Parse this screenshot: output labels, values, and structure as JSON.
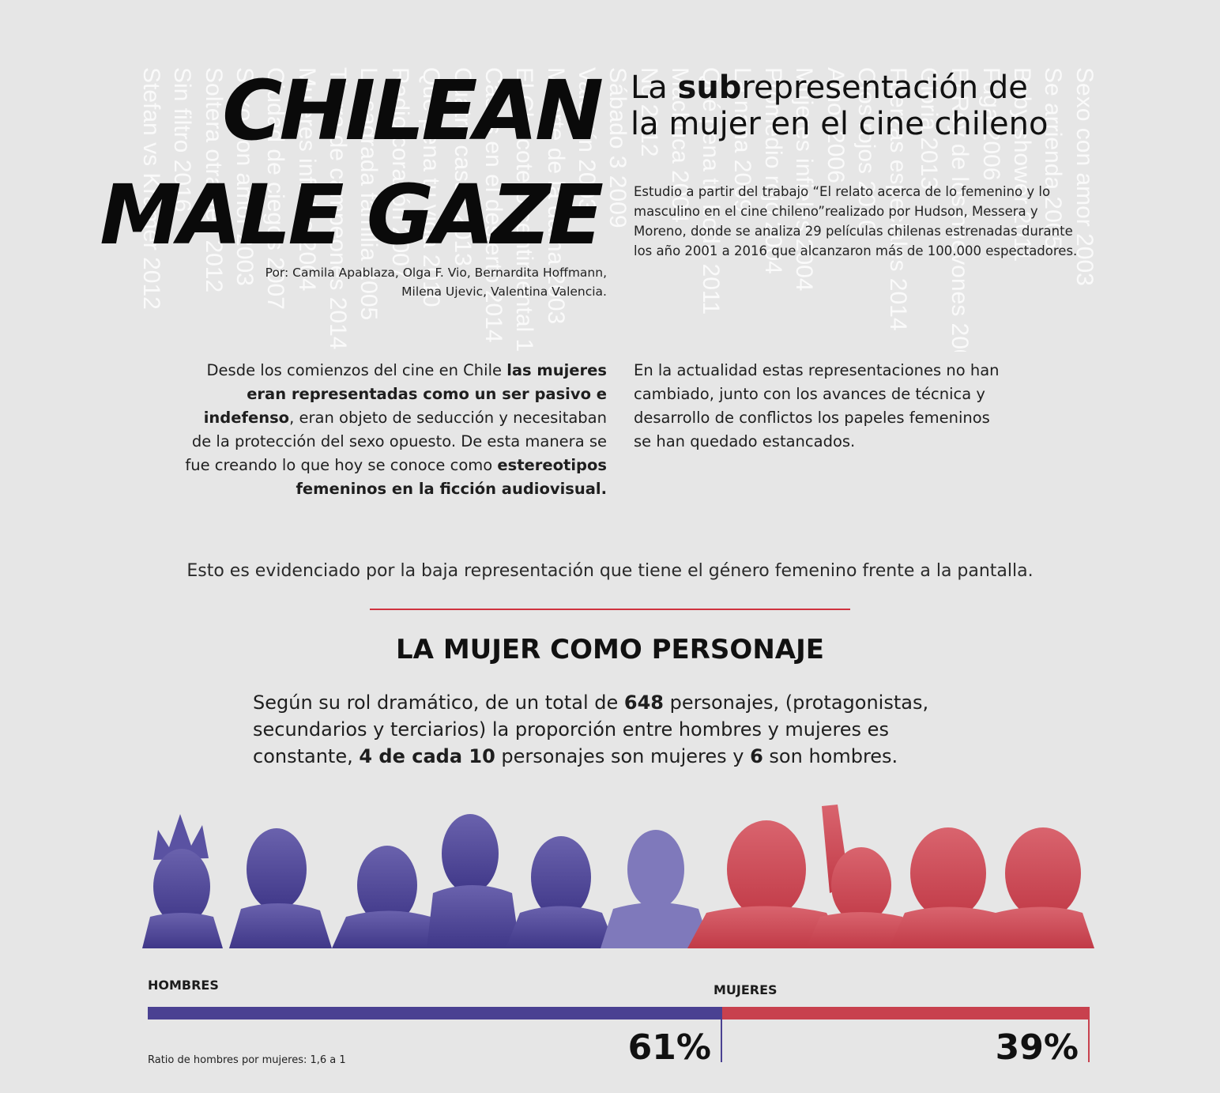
{
  "background_titles": [
    {
      "text": "Stefan vs Kramer 2012"
    },
    {
      "text": "Sin filtro 2016"
    },
    {
      "text": "Soltera otra vez 2012"
    },
    {
      "text": "Sexo con amor 2003"
    },
    {
      "text": "Ciudad de ciegos 2007"
    },
    {
      "text": "Mujeres infieles 2004"
    },
    {
      "text": "Tierra de campeones 2014"
    },
    {
      "text": "La sagrada familia 2005"
    },
    {
      "text": "Radio corazón 2007"
    },
    {
      "text": "Qué pena tu vida 2010"
    },
    {
      "text": "Cuatro casas 2013"
    },
    {
      "text": "Casas en el desierto 2014"
    },
    {
      "text": "El Chacotero sentimental 1999"
    },
    {
      "text": "Muerte de la dama 2003"
    },
    {
      "text": "Valentín 2003"
    },
    {
      "text": "Sábado 3 2009"
    },
    {
      "text": "No 2012"
    },
    {
      "text": "Machuca 2004"
    },
    {
      "text": "Qué pena tu boda 2011"
    },
    {
      "text": "La nana 2009"
    },
    {
      "text": "Promedio rojo 2004"
    },
    {
      "text": "Mujeres infieles 2004"
    },
    {
      "text": "Amor 2006"
    },
    {
      "text": "Ojos rojos 2010"
    },
    {
      "text": "Fuerzas especiales 2014"
    },
    {
      "text": "Gloria 2013"
    },
    {
      "text": "El Rey de los huevones 2006"
    },
    {
      "text": "Fuga 2006"
    },
    {
      "text": "Baby shower 2011"
    },
    {
      "text": "Se arrienda 2005"
    },
    {
      "text": "Sexo con amor 2003"
    }
  ],
  "header": {
    "title_line1": "CHILEAN",
    "title_line2": "MALE GAZE",
    "subtitle_prefix": "La ",
    "subtitle_bold": "sub",
    "subtitle_rest": "representación de",
    "subtitle_line2": "la mujer en el cine chileno",
    "authors_line1": "Por: Camila Apablaza, Olga F. Vio, Bernardita Hoffmann,",
    "authors_line2": "Milena Ujevic, Valentina Valencia.",
    "intro_lines": [
      "Estudio a partir del trabajo “El relato acerca de lo femenino y lo",
      "masculino en el cine chileno”realizado por Hudson, Messera y",
      "Moreno, donde se analiza 29 películas chilenas estrenadas durante",
      "los año 2001 a 2016 que alcanzaron más de 100.000 espectadores."
    ]
  },
  "left_paragraph": {
    "l1a": "Desde los comienzos del cine en Chile ",
    "l1b": "las mujeres",
    "l2": "eran representadas como un ser pasivo e",
    "l3a": "indefenso",
    "l3b": ", eran objeto de seducción y necesitaban",
    "l4": "de la protección del sexo opuesto. De esta manera se",
    "l5a": "fue creando lo que hoy se conoce como ",
    "l5b": "estereotipos",
    "l6": "femeninos en la ficción audiovisual."
  },
  "right_paragraph": [
    "En la actualidad estas representaciones no han",
    "cambiado, junto con los avances de técnica y",
    "desarrollo de conflictos los papeles femeninos",
    "se han quedado estancados."
  ],
  "evidence_line": "Esto es evidenciado por la baja representación que tiene el género femenino frente a la pantalla.",
  "section": {
    "heading": "LA MUJER COMO PERSONAJE",
    "l1a": "Según su rol dramático, de un total de ",
    "l1b": "648",
    "l1c": " personajes, (protagonistas,",
    "l2": "secundarios y terciarios) la proporción entre hombres y mujeres es",
    "l3a": "constante, ",
    "l3b": "4 de cada 10",
    "l3c": " personajes son mujeres y ",
    "l3d": "6",
    "l3e": " son hombres."
  },
  "colors": {
    "men": "#4a4192",
    "women": "#c8414e",
    "divider": "#d0333f"
  },
  "chart_data": {
    "type": "bar",
    "categories": [
      "HOMBRES",
      "MUJERES"
    ],
    "values": [
      61,
      39
    ],
    "labels": [
      "61%",
      "39%"
    ],
    "footnote": "Ratio de hombres por mujeres: 1,6 a 1"
  }
}
